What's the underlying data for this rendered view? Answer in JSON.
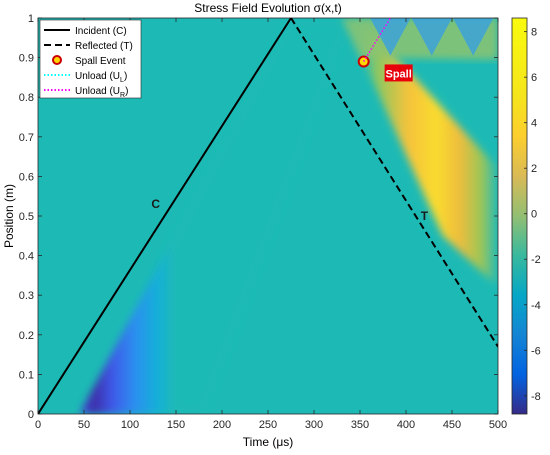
{
  "chart_data": {
    "type": "heatmap",
    "title": "Stress Field Evolution σ(x,t)",
    "xlabel": "Time (μs)",
    "ylabel": "Position (m)",
    "xlim": [
      0,
      500
    ],
    "ylim": [
      0,
      1
    ],
    "xticks": [
      "0",
      "50",
      "100",
      "150",
      "200",
      "250",
      "300",
      "350",
      "400",
      "450",
      "500"
    ],
    "xtick_values": [
      0,
      50,
      100,
      150,
      200,
      250,
      300,
      350,
      400,
      450,
      500
    ],
    "yticks": [
      "0",
      "0.1",
      "0.2",
      "0.3",
      "0.4",
      "0.5",
      "0.6",
      "0.7",
      "0.8",
      "0.9",
      "1"
    ],
    "ytick_values": [
      0,
      0.1,
      0.2,
      0.3,
      0.4,
      0.5,
      0.6,
      0.7,
      0.8,
      0.9,
      1
    ],
    "colorbar": {
      "colormap": "parula",
      "range": [
        -8.8,
        8.6
      ],
      "ticks": [
        "-8",
        "-6",
        "-4",
        "-2",
        "0",
        "2",
        "4",
        "6",
        "8"
      ],
      "tick_values": [
        -8,
        -6,
        -4,
        -2,
        0,
        2,
        4,
        6,
        8
      ]
    },
    "series": [
      {
        "name": "Incident (C)",
        "style": "solid",
        "color": "#000000",
        "x": [
          0,
          275
        ],
        "y": [
          0,
          1
        ]
      },
      {
        "name": "Reflected (T)",
        "style": "dashed",
        "color": "#000000",
        "x": [
          275,
          500
        ],
        "y": [
          1,
          0.17
        ]
      },
      {
        "name": "Spall Event",
        "style": "marker",
        "color": "#cc0000",
        "fill": "#ffd700",
        "x": [
          354
        ],
        "y": [
          0.89
        ]
      },
      {
        "name": "Unload (U",
        "sub": "L",
        "suffix": ")",
        "style": "dotted",
        "color": "#00ffff",
        "x": [],
        "y": []
      },
      {
        "name": "Unload (U",
        "sub": "R",
        "suffix": ")",
        "style": "dotted",
        "color": "#ff00ff",
        "x": [
          354,
          383
        ],
        "y": [
          0.89,
          1.0
        ]
      }
    ],
    "annotations": [
      {
        "text": "C",
        "x": 128,
        "y": 0.52
      },
      {
        "text": "T",
        "x": 420,
        "y": 0.49
      },
      {
        "text": "Spall",
        "x": 392,
        "y": 0.86,
        "background": "#e8000b",
        "color": "#ffffff"
      }
    ],
    "legend_position": "top-left",
    "grid": false
  }
}
